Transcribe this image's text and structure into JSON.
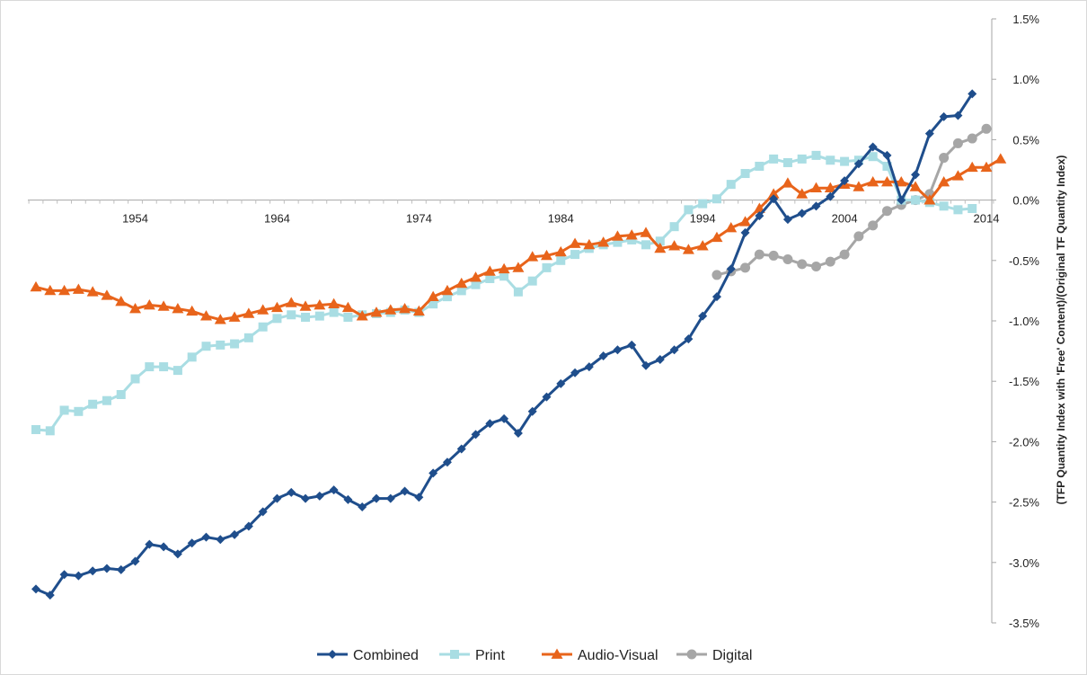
{
  "chart_data": {
    "type": "line",
    "title": "",
    "xlabel": "",
    "ylabel": "(TFP Quantity Index with 'Free' Content)/(Original TF Quantity Index)",
    "ylim": [
      -3.5,
      1.5
    ],
    "xlim": [
      1947,
      2014
    ],
    "x_tick_labels": [
      "1954",
      "1964",
      "1974",
      "1984",
      "1994",
      "2004",
      "2014"
    ],
    "x_ticks": [
      1954,
      1964,
      1974,
      1984,
      1994,
      2004,
      2014
    ],
    "y_ticks": [
      1.5,
      1.0,
      0.5,
      0.0,
      -0.5,
      -1.0,
      -1.5,
      -2.0,
      -2.5,
      -3.0,
      -3.5
    ],
    "y_tick_labels": [
      "1.5%",
      "1.0%",
      "0.5%",
      "0.0%",
      "-0.5%",
      "-1.0%",
      "-1.5%",
      "-2.0%",
      "-2.5%",
      "-3.0%",
      "-3.5%"
    ],
    "legend_position": "bottom",
    "grid": false,
    "series": [
      {
        "name": "Combined",
        "color": "#1f4e8c",
        "marker": "diamond",
        "x_start": 1947,
        "values": [
          -3.22,
          -3.27,
          -3.1,
          -3.11,
          -3.07,
          -3.05,
          -3.06,
          -2.99,
          -2.85,
          -2.87,
          -2.93,
          -2.84,
          -2.79,
          -2.81,
          -2.77,
          -2.7,
          -2.58,
          -2.47,
          -2.42,
          -2.47,
          -2.45,
          -2.4,
          -2.48,
          -2.54,
          -2.47,
          -2.47,
          -2.41,
          -2.46,
          -2.26,
          -2.17,
          -2.06,
          -1.94,
          -1.85,
          -1.81,
          -1.93,
          -1.75,
          -1.63,
          -1.52,
          -1.43,
          -1.38,
          -1.29,
          -1.24,
          -1.2,
          -1.37,
          -1.32,
          -1.24,
          -1.15,
          -0.96,
          -0.8,
          -0.57,
          -0.27,
          -0.13,
          0.01,
          -0.16,
          -0.11,
          -0.05,
          0.03,
          0.16,
          0.3,
          0.44,
          0.37,
          0.0,
          0.21,
          0.55,
          0.69,
          0.7,
          0.88
        ]
      },
      {
        "name": "Print",
        "color": "#a9dde3",
        "marker": "square",
        "x_start": 1947,
        "values": [
          -1.9,
          -1.91,
          -1.74,
          -1.75,
          -1.69,
          -1.66,
          -1.61,
          -1.48,
          -1.38,
          -1.38,
          -1.41,
          -1.3,
          -1.21,
          -1.2,
          -1.19,
          -1.14,
          -1.05,
          -0.98,
          -0.95,
          -0.97,
          -0.96,
          -0.93,
          -0.97,
          -0.95,
          -0.94,
          -0.93,
          -0.91,
          -0.93,
          -0.86,
          -0.8,
          -0.75,
          -0.7,
          -0.65,
          -0.63,
          -0.76,
          -0.67,
          -0.56,
          -0.5,
          -0.45,
          -0.4,
          -0.37,
          -0.35,
          -0.33,
          -0.37,
          -0.34,
          -0.22,
          -0.08,
          -0.03,
          0.01,
          0.13,
          0.22,
          0.28,
          0.34,
          0.31,
          0.34,
          0.37,
          0.33,
          0.32,
          0.33,
          0.36,
          0.28,
          0.0,
          0.0,
          -0.02,
          -0.05,
          -0.08,
          -0.07
        ]
      },
      {
        "name": "Audio-Visual",
        "color": "#e8641b",
        "marker": "triangle",
        "x_start": 1947,
        "values": [
          -0.72,
          -0.75,
          -0.75,
          -0.74,
          -0.76,
          -0.79,
          -0.84,
          -0.9,
          -0.87,
          -0.88,
          -0.9,
          -0.92,
          -0.96,
          -0.99,
          -0.97,
          -0.94,
          -0.91,
          -0.89,
          -0.85,
          -0.88,
          -0.87,
          -0.86,
          -0.89,
          -0.96,
          -0.93,
          -0.91,
          -0.9,
          -0.92,
          -0.8,
          -0.75,
          -0.69,
          -0.64,
          -0.59,
          -0.57,
          -0.56,
          -0.47,
          -0.46,
          -0.43,
          -0.36,
          -0.37,
          -0.35,
          -0.3,
          -0.29,
          -0.27,
          -0.4,
          -0.38,
          -0.41,
          -0.38,
          -0.31,
          -0.23,
          -0.18,
          -0.07,
          0.05,
          0.14,
          0.05,
          0.1,
          0.1,
          0.13,
          0.11,
          0.15,
          0.15,
          0.15,
          0.11,
          0.0,
          0.15,
          0.2,
          0.27,
          0.27,
          0.34
        ]
      },
      {
        "name": "Digital",
        "color": "#a6a6a6",
        "marker": "circle",
        "x_start": 1995,
        "values": [
          -0.62,
          -0.59,
          -0.56,
          -0.45,
          -0.46,
          -0.49,
          -0.53,
          -0.55,
          -0.51,
          -0.45,
          -0.3,
          -0.21,
          -0.09,
          -0.04,
          0.0,
          0.05,
          0.35,
          0.47,
          0.51,
          0.59
        ]
      }
    ]
  }
}
